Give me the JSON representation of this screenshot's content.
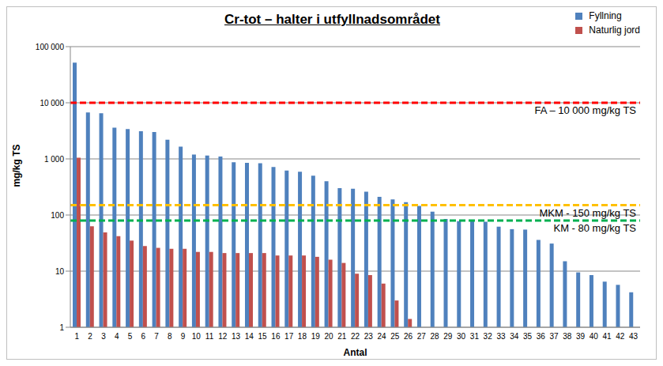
{
  "chart_data": {
    "type": "bar",
    "title": "Cr-tot – halter i utfyllnadsområdet",
    "x_label": "Antal",
    "y_label": "mg/kg TS",
    "log": "y",
    "grid": true,
    "legend": "upper right",
    "categories": [
      "1",
      "2",
      "3",
      "4",
      "5",
      "6",
      "7",
      "8",
      "9",
      "10",
      "11",
      "12",
      "13",
      "14",
      "15",
      "16",
      "17",
      "18",
      "19",
      "20",
      "21",
      "22",
      "23",
      "24",
      "25",
      "26",
      "27",
      "28",
      "29",
      "30",
      "31",
      "32",
      "33",
      "34",
      "35",
      "36",
      "37",
      "38",
      "39",
      "40",
      "41",
      "42",
      "43"
    ],
    "series": [
      {
        "name": "Fyllning",
        "color": "#4f81bd",
        "values": [
          52000,
          6700,
          6500,
          3600,
          3400,
          3100,
          3000,
          2200,
          1650,
          1200,
          1150,
          1100,
          870,
          850,
          840,
          720,
          620,
          590,
          500,
          400,
          300,
          295,
          260,
          210,
          190,
          170,
          145,
          115,
          85,
          78,
          78,
          76,
          62,
          56,
          55,
          36,
          31,
          15,
          9.5,
          8.5,
          6.5,
          5.7,
          4.2
        ]
      },
      {
        "name": "Naturlig jord",
        "color": "#c0504d",
        "values": [
          1050,
          63,
          49,
          42,
          35,
          28,
          26,
          25,
          25,
          22,
          22,
          21,
          21,
          21,
          21,
          19,
          19,
          19,
          18,
          16,
          14,
          9,
          8.5,
          6,
          3,
          1.4,
          null,
          null,
          null,
          null,
          null,
          null,
          null,
          null,
          null,
          null,
          null,
          null,
          null,
          null,
          null,
          null,
          null
        ]
      }
    ],
    "ylim": [
      1,
      100000
    ],
    "yticks": [
      1,
      10,
      100,
      {
        "value": 1000,
        "label": "1 000"
      },
      {
        "value": 10000,
        "label": "10 000"
      },
      {
        "value": 100000,
        "label": "100 000"
      }
    ],
    "reference_lines": [
      {
        "value": 10000,
        "label": "FA – 10 000 mg/kg TS",
        "color": "#ff0000",
        "line_style": "dashed"
      },
      {
        "value": 150,
        "label": "MKM - 150 mg/kg TS",
        "color": "#ffc000",
        "line_style": "dashed"
      },
      {
        "value": 80,
        "label": "KM - 80 mg/kg TS",
        "color": "#00b050",
        "line_style": "dashed"
      }
    ]
  }
}
